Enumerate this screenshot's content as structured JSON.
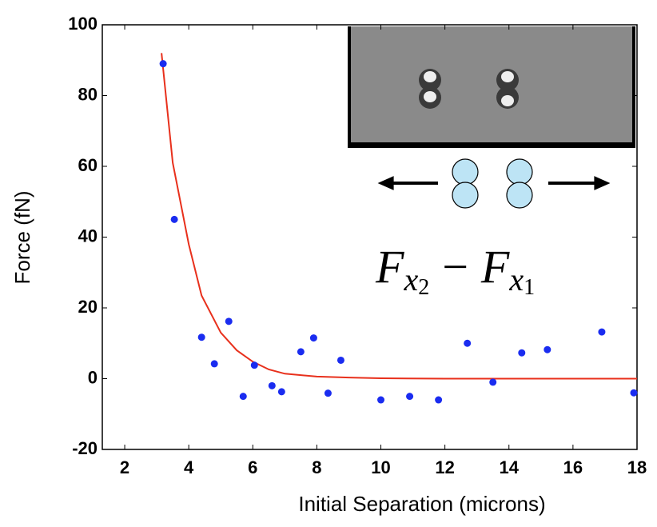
{
  "chart_data": {
    "type": "scatter",
    "xlabel": "Initial Separation (microns)",
    "ylabel": "Force (fN)",
    "xlim": [
      1.3,
      18
    ],
    "ylim": [
      -20,
      100
    ],
    "xticks": [
      2,
      4,
      6,
      8,
      10,
      12,
      14,
      16,
      18
    ],
    "yticks": [
      -20,
      0,
      20,
      40,
      60,
      80,
      100
    ],
    "points": {
      "color": "#1a2cf0",
      "x": [
        3.2,
        3.55,
        4.4,
        4.8,
        5.25,
        5.7,
        6.05,
        6.6,
        6.9,
        7.5,
        7.9,
        8.35,
        8.75,
        10.0,
        10.9,
        11.8,
        12.7,
        13.5,
        14.4,
        15.2,
        16.9,
        17.9
      ],
      "y": [
        89,
        45,
        11.7,
        4.2,
        16.2,
        -5,
        3.8,
        -2,
        -3.7,
        7.6,
        11.5,
        -4.1,
        5.2,
        -6,
        -5,
        -6,
        10,
        -1,
        7.3,
        8.2,
        13.2,
        -4
      ]
    },
    "fit": {
      "color": "#e8301c",
      "x": [
        3.15,
        3.5,
        4.0,
        4.4,
        5.0,
        5.5,
        6.0,
        6.5,
        7.0,
        8.0,
        9.0,
        10.0,
        12.0,
        14.0,
        18.0
      ],
      "y": [
        92,
        61,
        38,
        23.5,
        13,
        8,
        4.8,
        2.6,
        1.4,
        0.6,
        0.3,
        0.1,
        0,
        0,
        0
      ]
    },
    "formula": [
      "F",
      "x",
      "2",
      "−",
      "F",
      "x",
      "1"
    ]
  }
}
